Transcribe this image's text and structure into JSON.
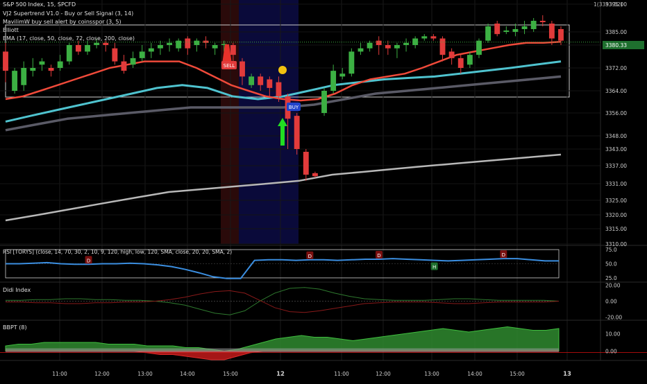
{
  "legend": {
    "title": "S&P 500 Index, 15, SPCFD",
    "lines": [
      "VJ2 Supertrend V1.0 - Buy or Sell Signal (3, 14)",
      "MavilimW buy sell alert by coinsspor (3, 5)",
      "Elliott",
      "EMA (17, close, 50, close, 72, close, 200, close)"
    ],
    "header_right": "1(3393.52)"
  },
  "colors": {
    "background": "#000000",
    "up_candle": "#3cb043",
    "down_candle": "#e23b3b",
    "ema17": "#f04a3a",
    "ema50": "#4fc3cf",
    "ema72": "#5a5a66",
    "ema200": "#b8b8b8",
    "blue_line": "#1f2fa8",
    "green_line": "#3a7a3a",
    "rsi_line": "#3b8ee0",
    "bbpt_up": "#2f8a2f",
    "bbpt_down": "#c21a1a",
    "signal_panel_bg": "#0a0a3a"
  },
  "chart_data": [
    {
      "type": "candlestick",
      "title": "S&P 500 Index, 15, SPCFD",
      "x_ticks": [
        "11:00",
        "12:00",
        "13:00",
        "14:00",
        "15:00",
        "12",
        "11:00",
        "12:00",
        "13:00",
        "14:00",
        "15:00",
        "13"
      ],
      "y_ticks": [
        3395.0,
        3385.0,
        3379.0,
        3372.0,
        3364.0,
        3356.0,
        3348.0,
        3343.0,
        3337.0,
        3331.0,
        3325.0,
        3320.0,
        3315.0,
        3310.0
      ],
      "y_tick_labels": [
        "3395.00",
        "3385.00",
        "3380.33",
        "3372.00",
        "3364.00",
        "3356.00",
        "3348.00",
        "3343.00",
        "3337.00",
        "3331.00",
        "3325.00",
        "3320.00",
        "3315.00",
        "3310.00"
      ],
      "ylim": [
        3310,
        3396
      ],
      "last_price_label": "3380.33",
      "last_price": 3380.33,
      "candles": [
        {
          "o": 3377,
          "c": 3371,
          "h": 3380,
          "l": 3367
        },
        {
          "o": 3364,
          "c": 3371,
          "h": 3372,
          "l": 3363
        },
        {
          "o": 3366,
          "c": 3372,
          "h": 3374,
          "l": 3364
        },
        {
          "o": 3371,
          "c": 3372,
          "h": 3375,
          "l": 3369
        },
        {
          "o": 3373,
          "c": 3374,
          "h": 3375,
          "l": 3371
        },
        {
          "o": 3372,
          "c": 3371,
          "h": 3373,
          "l": 3369
        },
        {
          "o": 3372,
          "c": 3374,
          "h": 3376,
          "l": 3371
        },
        {
          "o": 3374,
          "c": 3379,
          "h": 3380,
          "l": 3373
        },
        {
          "o": 3379,
          "c": 3377,
          "h": 3381,
          "l": 3376
        },
        {
          "o": 3377,
          "c": 3379,
          "h": 3381,
          "l": 3376
        },
        {
          "o": 3379,
          "c": 3380,
          "h": 3382,
          "l": 3378
        },
        {
          "o": 3380,
          "c": 3379,
          "h": 3381,
          "l": 3377
        },
        {
          "o": 3378,
          "c": 3374,
          "h": 3380,
          "l": 3373
        },
        {
          "o": 3374,
          "c": 3371,
          "h": 3376,
          "l": 3370
        },
        {
          "o": 3373,
          "c": 3375,
          "h": 3377,
          "l": 3372
        },
        {
          "o": 3375,
          "c": 3377,
          "h": 3379,
          "l": 3374
        },
        {
          "o": 3377,
          "c": 3378,
          "h": 3380,
          "l": 3375
        },
        {
          "o": 3378,
          "c": 3379,
          "h": 3381,
          "l": 3376
        },
        {
          "o": 3379,
          "c": 3380,
          "h": 3382,
          "l": 3377
        },
        {
          "o": 3378,
          "c": 3381,
          "h": 3382,
          "l": 3377
        },
        {
          "o": 3382,
          "c": 3378,
          "h": 3383,
          "l": 3376
        },
        {
          "o": 3379,
          "c": 3381,
          "h": 3382,
          "l": 3377
        },
        {
          "o": 3381,
          "c": 3380,
          "h": 3383,
          "l": 3378
        },
        {
          "o": 3378,
          "c": 3379,
          "h": 3380,
          "l": 3376
        },
        {
          "o": 3379,
          "c": 3379.5,
          "h": 3381,
          "l": 3377
        },
        {
          "o": 3379,
          "c": 3376,
          "h": 3380,
          "l": 3374
        },
        {
          "o": 3374,
          "c": 3369,
          "h": 3375,
          "l": 3366
        },
        {
          "o": 3366,
          "c": 3369,
          "h": 3370,
          "l": 3365
        },
        {
          "o": 3369,
          "c": 3366,
          "h": 3370,
          "l": 3364
        },
        {
          "o": 3368,
          "c": 3365,
          "h": 3369,
          "l": 3362
        },
        {
          "o": 3367,
          "c": 3362,
          "h": 3369,
          "l": 3360
        },
        {
          "o": 3362,
          "c": 3354,
          "h": 3363,
          "l": 3343
        },
        {
          "o": 3355,
          "c": 3343,
          "h": 3356,
          "l": 3341
        },
        {
          "o": 3342,
          "c": 3334,
          "h": 3343,
          "l": 3332
        },
        {
          "o": 3334.5,
          "c": 3333.5,
          "h": 3335,
          "l": 3333
        },
        {
          "o": 3356,
          "c": 3364,
          "h": 3365,
          "l": 3355
        },
        {
          "o": 3364,
          "c": 3371,
          "h": 3373,
          "l": 3363
        },
        {
          "o": 3369,
          "c": 3370,
          "h": 3372,
          "l": 3368
        },
        {
          "o": 3370,
          "c": 3377,
          "h": 3378,
          "l": 3369
        },
        {
          "o": 3377,
          "c": 3378,
          "h": 3380,
          "l": 3376
        },
        {
          "o": 3378,
          "c": 3380,
          "h": 3381,
          "l": 3377
        },
        {
          "o": 3381,
          "c": 3379,
          "h": 3383,
          "l": 3376
        },
        {
          "o": 3379,
          "c": 3378,
          "h": 3381,
          "l": 3376
        },
        {
          "o": 3378,
          "c": 3379,
          "h": 3380,
          "l": 3375
        },
        {
          "o": 3379,
          "c": 3380,
          "h": 3382,
          "l": 3377
        },
        {
          "o": 3379,
          "c": 3382,
          "h": 3383,
          "l": 3378
        },
        {
          "o": 3382,
          "c": 3383,
          "h": 3384,
          "l": 3381
        },
        {
          "o": 3383,
          "c": 3382,
          "h": 3384,
          "l": 3381
        },
        {
          "o": 3382,
          "c": 3376,
          "h": 3383,
          "l": 3374
        },
        {
          "o": 3377,
          "c": 3375,
          "h": 3378,
          "l": 3373
        },
        {
          "o": 3375,
          "c": 3372,
          "h": 3376,
          "l": 3370
        },
        {
          "o": 3373,
          "c": 3376,
          "h": 3377,
          "l": 3372
        },
        {
          "o": 3376,
          "c": 3381,
          "h": 3382,
          "l": 3375
        },
        {
          "o": 3381,
          "c": 3387,
          "h": 3388,
          "l": 3380
        },
        {
          "o": 3388,
          "c": 3384,
          "h": 3389,
          "l": 3383
        },
        {
          "o": 3385,
          "c": 3385.5,
          "h": 3387,
          "l": 3384
        },
        {
          "o": 3385,
          "c": 3386,
          "h": 3388,
          "l": 3383
        },
        {
          "o": 3386,
          "c": 3387,
          "h": 3389,
          "l": 3384
        },
        {
          "o": 3386,
          "c": 3389,
          "h": 3390,
          "l": 3385
        },
        {
          "o": 3389,
          "c": 3388.5,
          "h": 3391,
          "l": 3387
        },
        {
          "o": 3388,
          "c": 3382,
          "h": 3389,
          "l": 3379
        },
        {
          "o": 3386,
          "c": 3381,
          "h": 3387,
          "l": 3379
        }
      ],
      "ema17": [
        3361,
        3362,
        3364,
        3366,
        3368,
        3370,
        3372,
        3373,
        3374,
        3374,
        3374,
        3372,
        3369,
        3366,
        3364,
        3362,
        3361,
        3360.5,
        3361,
        3363,
        3366,
        3368,
        3369,
        3370,
        3372,
        3374,
        3376,
        3377,
        3378,
        3379,
        3380,
        3380,
        3380.5
      ],
      "ema50": [
        3353,
        3355,
        3357,
        3359,
        3361,
        3363,
        3365,
        3366,
        3365,
        3362,
        3361,
        3362,
        3364,
        3366,
        3367,
        3368,
        3368.5,
        3369,
        3370,
        3371,
        3372,
        3373,
        3374
      ],
      "ema72": [
        3350,
        3352,
        3354,
        3355,
        3356,
        3357,
        3358,
        3358,
        3358,
        3358,
        3359,
        3361,
        3363,
        3364,
        3365,
        3366,
        3367,
        3368,
        3369
      ],
      "ema200": [
        3318,
        3320,
        3322,
        3324,
        3326,
        3328,
        3329,
        3330,
        3331,
        3332,
        3334,
        3335,
        3336,
        3337,
        3338,
        3339,
        3340,
        3341
      ],
      "annotations": {
        "sell": "SELL",
        "buy": "BUY"
      }
    },
    {
      "type": "line",
      "title": "RSI [TORYS] (close, 14, 70, 30, 2, 10, 9, 120, high, low, 120, SMA, close, 20, 20, SMA, 2)",
      "y_tick_labels": [
        "75.0",
        "50.0",
        "25.0"
      ],
      "ylim": [
        20,
        80
      ],
      "values": [
        50,
        50,
        51,
        52,
        50,
        49,
        49,
        50,
        50,
        51,
        50,
        48,
        45,
        40,
        34,
        27,
        24,
        24,
        56,
        57,
        57,
        56,
        57,
        57,
        56,
        57,
        58,
        58,
        59,
        58,
        57,
        56,
        55,
        56,
        57,
        58,
        59,
        59,
        57,
        55,
        55
      ],
      "markers": [
        {
          "label": "D",
          "index": 6
        },
        {
          "label": "D",
          "index": 22
        },
        {
          "label": "D",
          "index": 27
        },
        {
          "label": "H",
          "index": 31
        },
        {
          "label": "D",
          "index": 36
        }
      ]
    },
    {
      "type": "line",
      "title": "Didi Index",
      "y_tick_labels": [
        "20.00",
        "0.00",
        "-20.00"
      ],
      "ylim": [
        -22,
        22
      ],
      "series": [
        {
          "values": [
            1,
            1,
            2,
            2,
            3,
            3,
            2,
            2,
            1,
            1,
            0,
            -2,
            -5,
            -10,
            -15,
            -17,
            -12,
            0,
            10,
            16,
            17,
            15,
            10,
            6,
            3,
            2,
            1,
            1,
            1,
            2,
            3,
            3,
            2,
            1,
            1,
            1,
            1,
            0
          ]
        },
        {
          "values": [
            -1,
            -1,
            -2,
            -2,
            -3,
            -3,
            -2,
            -2,
            -1,
            -1,
            0,
            2,
            5,
            9,
            12,
            13,
            10,
            1,
            -8,
            -13,
            -14,
            -12,
            -9,
            -6,
            -3,
            -2,
            -1,
            -1,
            -1,
            -2,
            -3,
            -3,
            -2,
            -1,
            -1,
            -1,
            -1,
            0
          ]
        }
      ]
    },
    {
      "type": "area",
      "title": "BBPT (8)",
      "y_tick_labels": [
        "10.00",
        "0.00"
      ],
      "ylim": [
        -5,
        17
      ],
      "series": [
        {
          "values": [
            3,
            4,
            4,
            5,
            5,
            5,
            5,
            5,
            4,
            4,
            4,
            3,
            3,
            3,
            2,
            2,
            1,
            0,
            1,
            3,
            5,
            7,
            8,
            9,
            8,
            8,
            7,
            6,
            7,
            8,
            9,
            10,
            11,
            12,
            13,
            12,
            11,
            12,
            13,
            14,
            13,
            12,
            12,
            13
          ]
        },
        {
          "values": [
            0,
            0,
            0,
            0,
            0,
            0,
            0,
            0,
            0,
            0,
            0,
            -1,
            -2,
            -2,
            -3,
            -4,
            -5,
            -5,
            -3,
            -1,
            0,
            0,
            0,
            0,
            0,
            0,
            0,
            0,
            0,
            0,
            0,
            0,
            0,
            0,
            0,
            0,
            0,
            0,
            0,
            0,
            0,
            0,
            0,
            0
          ]
        }
      ]
    }
  ]
}
